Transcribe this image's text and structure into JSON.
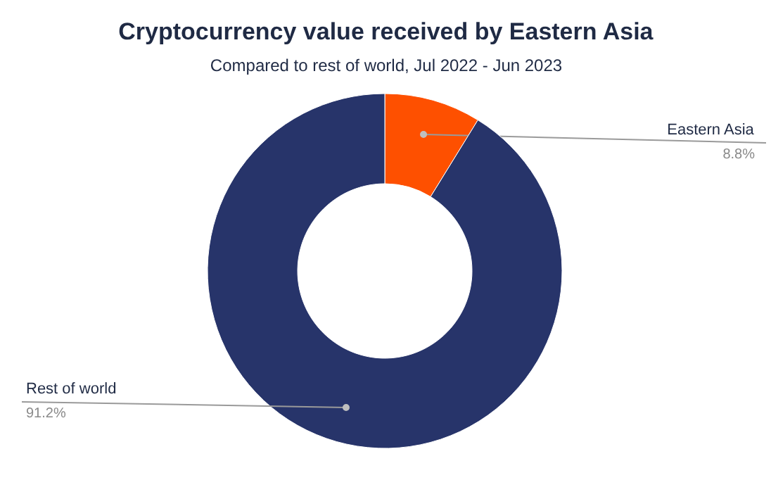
{
  "chart_data": {
    "type": "donut",
    "title": "Cryptocurrency value received by Eastern Asia",
    "subtitle": "Compared to rest of world, Jul 2022 - Jun 2023",
    "categories": [
      "Eastern Asia",
      "Rest of world"
    ],
    "values": [
      8.8,
      91.2
    ],
    "colors": [
      "#fe5000",
      "#27346a"
    ],
    "value_labels": [
      "8.8%",
      "91.2%"
    ]
  }
}
